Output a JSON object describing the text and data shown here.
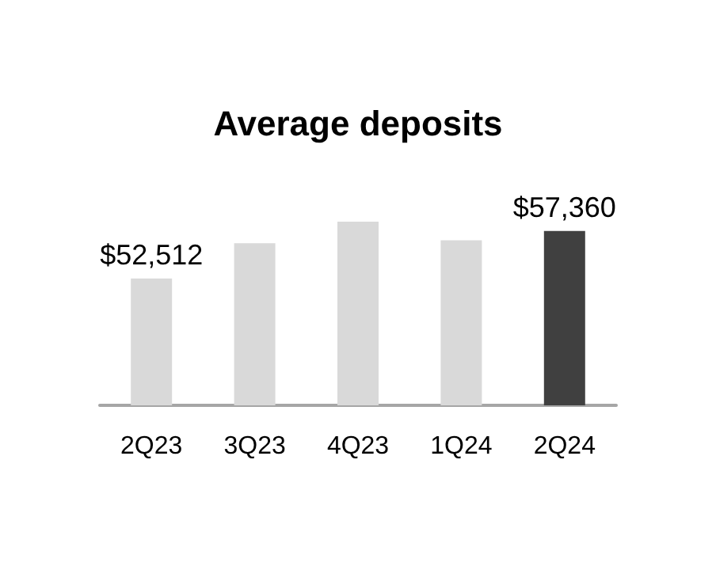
{
  "chart_data": {
    "type": "bar",
    "title": "Average deposits",
    "categories": [
      "2Q23",
      "3Q23",
      "4Q23",
      "1Q24",
      "2Q24"
    ],
    "values": [
      52512,
      56100,
      58300,
      56400,
      57360
    ],
    "colors": [
      "#d9d9d9",
      "#d9d9d9",
      "#d9d9d9",
      "#d9d9d9",
      "#404040"
    ],
    "value_labels": [
      "$52,512",
      null,
      null,
      null,
      "$57,360"
    ],
    "ylim": [
      39600,
      58300
    ],
    "tick_labels": "x"
  }
}
